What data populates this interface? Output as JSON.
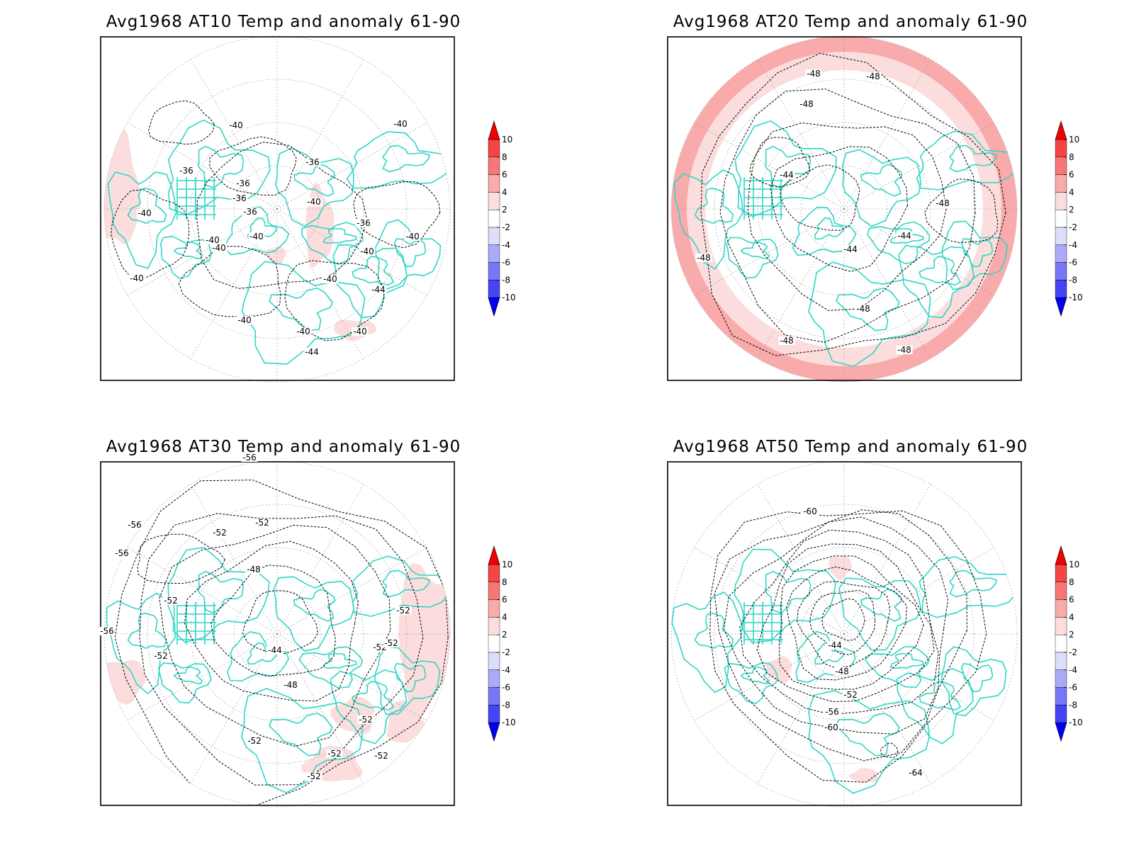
{
  "colorbar": {
    "levels": [
      "10",
      "8",
      "6",
      "4",
      "2",
      "-2",
      "-4",
      "-6",
      "-8",
      "-10"
    ],
    "colors": [
      "#f40000",
      "#f44444",
      "#f77777",
      "#f9aaaa",
      "#fcdddd",
      "#ffffff",
      "#ddddfc",
      "#aaaaf9",
      "#7777f7",
      "#4444f4",
      "#0000f4"
    ]
  },
  "coastline_color": "#2fd6c6",
  "panels": [
    {
      "title": "Avg1968 AT10 Temp and anomaly 61-90",
      "contour_labels": [
        "-40",
        "-40",
        "-36",
        "-36",
        "-36",
        "-36",
        "-36",
        "-40",
        "-40",
        "-40",
        "-40",
        "-40",
        "-36",
        "-40",
        "-40",
        "-40",
        "-40",
        "-44",
        "-40",
        "-40",
        "-40",
        "-44"
      ]
    },
    {
      "title": "Avg1968 AT20 Temp and anomaly 61-90",
      "contour_labels": [
        "-48",
        "-48",
        "-48",
        "-44",
        "-48",
        "-44",
        "-44",
        "-48",
        "-48",
        "-48",
        "-48"
      ]
    },
    {
      "title": "Avg1968 AT30 Temp and anomaly 61-90",
      "contour_labels": [
        "-56",
        "-56",
        "-56",
        "-52",
        "-52",
        "-48",
        "-52",
        "-56",
        "-52",
        "-44",
        "-52",
        "-52",
        "-52",
        "-48",
        "-52",
        "-52",
        "-52",
        "-52",
        "-52"
      ]
    },
    {
      "title": "Avg1968 AT50 Temp and anomaly 61-90",
      "contour_labels": [
        "-60",
        "-44",
        "-48",
        "-52",
        "-56",
        "-60",
        "-64"
      ]
    }
  ]
}
